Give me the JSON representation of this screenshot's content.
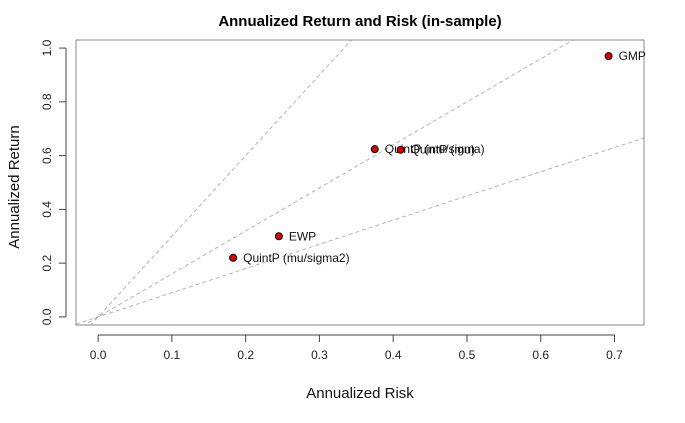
{
  "chart_data": {
    "type": "scatter",
    "title": "Annualized Return and Risk (in-sample)",
    "xlabel": "Annualized Risk",
    "ylabel": "Annualized Return",
    "xlim": [
      -0.03,
      0.74
    ],
    "ylim": [
      -0.03,
      1.03
    ],
    "xticks": [
      "0.0",
      "0.1",
      "0.2",
      "0.3",
      "0.4",
      "0.5",
      "0.6",
      "0.7"
    ],
    "yticks": [
      "0.0",
      "0.2",
      "0.4",
      "0.6",
      "0.8",
      "1.0"
    ],
    "grid": false,
    "marker_color": "#e00000",
    "reference_line_color": "#b4b4b4",
    "reference_lines_slopes": [
      3.0,
      1.6,
      0.9
    ],
    "points": [
      {
        "label": "GMP",
        "x": 0.692,
        "y": 0.97
      },
      {
        "label": "QuintP (mu/sigma)",
        "x": 0.375,
        "y": 0.624
      },
      {
        "label": "QuintP (mu)",
        "x": 0.41,
        "y": 0.622
      },
      {
        "label": "EWP",
        "x": 0.245,
        "y": 0.3
      },
      {
        "label": "QuintP (mu/sigma2)",
        "x": 0.183,
        "y": 0.22
      }
    ]
  }
}
